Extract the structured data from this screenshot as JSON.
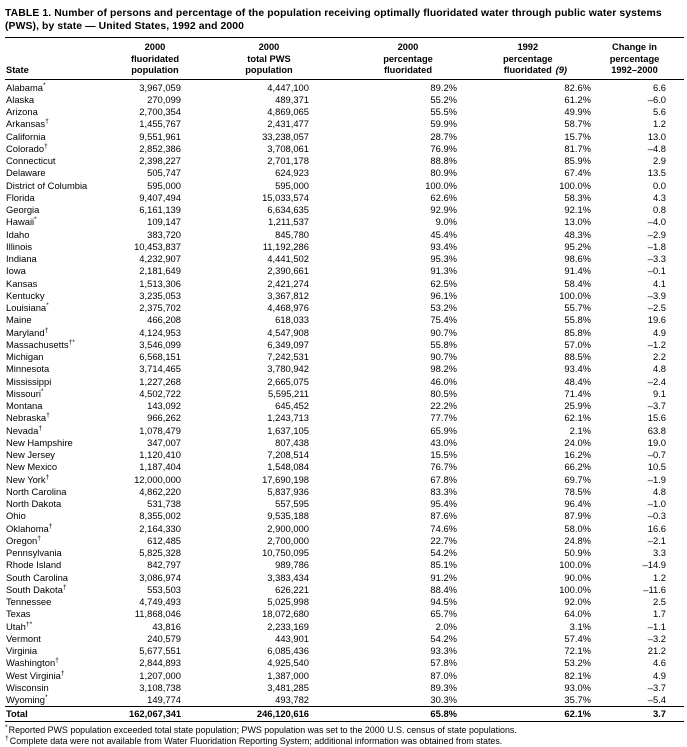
{
  "title": "TABLE 1. Number of persons and percentage of the population receiving optimally fluoridated water through public water systems (PWS), by state — United States, 1992 and 2000",
  "colors": {
    "background": "#ffffff",
    "text": "#000000"
  },
  "table": {
    "columns": [
      {
        "label": "State"
      },
      {
        "label": "2000\nfluoridated\npopulation"
      },
      {
        "label": "2000\ntotal PWS\npopulation"
      },
      {
        "label": "2000\npercentage\nfluoridated"
      },
      {
        "label": "1992\npercentage\nfluoridated",
        "ref": "(9)"
      },
      {
        "label": "Change in\npercentage\n1992–2000"
      }
    ],
    "rows": [
      {
        "state": "Alabama",
        "mark": "*",
        "values": [
          "3,967,059",
          "4,447,100",
          "89.2%",
          "82.6%",
          "6.6"
        ]
      },
      {
        "state": "Alaska",
        "mark": "",
        "values": [
          "270,099",
          "489,371",
          "55.2%",
          "61.2%",
          "–6.0"
        ]
      },
      {
        "state": "Arizona",
        "mark": "",
        "values": [
          "2,700,354",
          "4,869,065",
          "55.5%",
          "49.9%",
          "5.6"
        ]
      },
      {
        "state": "Arkansas",
        "mark": "†",
        "values": [
          "1,455,767",
          "2,431,477",
          "59.9%",
          "58.7%",
          "1.2"
        ]
      },
      {
        "state": "California",
        "mark": "",
        "values": [
          "9,551,961",
          "33,238,057",
          "28.7%",
          "15.7%",
          "13.0"
        ]
      },
      {
        "state": "Colorado",
        "mark": "†",
        "values": [
          "2,852,386",
          "3,708,061",
          "76.9%",
          "81.7%",
          "–4.8"
        ]
      },
      {
        "state": "Connecticut",
        "mark": "",
        "values": [
          "2,398,227",
          "2,701,178",
          "88.8%",
          "85.9%",
          "2.9"
        ]
      },
      {
        "state": "Delaware",
        "mark": "",
        "values": [
          "505,747",
          "624,923",
          "80.9%",
          "67.4%",
          "13.5"
        ]
      },
      {
        "state": "District of Columbia",
        "mark": "",
        "values": [
          "595,000",
          "595,000",
          "100.0%",
          "100.0%",
          "0.0"
        ]
      },
      {
        "state": "Florida",
        "mark": "",
        "values": [
          "9,407,494",
          "15,033,574",
          "62.6%",
          "58.3%",
          "4.3"
        ]
      },
      {
        "state": "Georgia",
        "mark": "",
        "values": [
          "6,161,139",
          "6,634,635",
          "92.9%",
          "92.1%",
          "0.8"
        ]
      },
      {
        "state": "Hawaii",
        "mark": "*",
        "values": [
          "109,147",
          "1,211,537",
          "9.0%",
          "13.0%",
          "–4.0"
        ]
      },
      {
        "state": "Idaho",
        "mark": "",
        "values": [
          "383,720",
          "845,780",
          "45.4%",
          "48.3%",
          "–2.9"
        ]
      },
      {
        "state": "Illinois",
        "mark": "",
        "values": [
          "10,453,837",
          "11,192,286",
          "93.4%",
          "95.2%",
          "–1.8"
        ]
      },
      {
        "state": "Indiana",
        "mark": "",
        "values": [
          "4,232,907",
          "4,441,502",
          "95.3%",
          "98.6%",
          "–3.3"
        ]
      },
      {
        "state": "Iowa",
        "mark": "",
        "values": [
          "2,181,649",
          "2,390,661",
          "91.3%",
          "91.4%",
          "–0.1"
        ]
      },
      {
        "state": "Kansas",
        "mark": "",
        "values": [
          "1,513,306",
          "2,421,274",
          "62.5%",
          "58.4%",
          "4.1"
        ]
      },
      {
        "state": "Kentucky",
        "mark": "",
        "values": [
          "3,235,053",
          "3,367,812",
          "96.1%",
          "100.0%",
          "–3.9"
        ]
      },
      {
        "state": "Louisiana",
        "mark": "*",
        "values": [
          "2,375,702",
          "4,468,976",
          "53.2%",
          "55.7%",
          "–2.5"
        ]
      },
      {
        "state": "Maine",
        "mark": "",
        "values": [
          "466,208",
          "618,033",
          "75.4%",
          "55.8%",
          "19.6"
        ]
      },
      {
        "state": "Maryland",
        "mark": "†",
        "values": [
          "4,124,953",
          "4,547,908",
          "90.7%",
          "85.8%",
          "4.9"
        ]
      },
      {
        "state": "Massachusetts",
        "mark": "†*",
        "values": [
          "3,546,099",
          "6,349,097",
          "55.8%",
          "57.0%",
          "–1.2"
        ]
      },
      {
        "state": "Michigan",
        "mark": "",
        "values": [
          "6,568,151",
          "7,242,531",
          "90.7%",
          "88.5%",
          "2.2"
        ]
      },
      {
        "state": "Minnesota",
        "mark": "",
        "values": [
          "3,714,465",
          "3,780,942",
          "98.2%",
          "93.4%",
          "4.8"
        ]
      },
      {
        "state": "Mississippi",
        "mark": "",
        "values": [
          "1,227,268",
          "2,665,075",
          "46.0%",
          "48.4%",
          "–2.4"
        ]
      },
      {
        "state": "Missouri",
        "mark": "*",
        "values": [
          "4,502,722",
          "5,595,211",
          "80.5%",
          "71.4%",
          "9.1"
        ]
      },
      {
        "state": "Montana",
        "mark": "",
        "values": [
          "143,092",
          "645,452",
          "22.2%",
          "25.9%",
          "–3.7"
        ]
      },
      {
        "state": "Nebraska",
        "mark": "†",
        "values": [
          "966,262",
          "1,243,713",
          "77.7%",
          "62.1%",
          "15.6"
        ]
      },
      {
        "state": "Nevada",
        "mark": "†",
        "values": [
          "1,078,479",
          "1,637,105",
          "65.9%",
          "2.1%",
          "63.8"
        ]
      },
      {
        "state": "New Hampshire",
        "mark": "",
        "values": [
          "347,007",
          "807,438",
          "43.0%",
          "24.0%",
          "19.0"
        ]
      },
      {
        "state": "New Jersey",
        "mark": "",
        "values": [
          "1,120,410",
          "7,208,514",
          "15.5%",
          "16.2%",
          "–0.7"
        ]
      },
      {
        "state": "New Mexico",
        "mark": "",
        "values": [
          "1,187,404",
          "1,548,084",
          "76.7%",
          "66.2%",
          "10.5"
        ]
      },
      {
        "state": "New York",
        "mark": "†",
        "values": [
          "12,000,000",
          "17,690,198",
          "67.8%",
          "69.7%",
          "–1.9"
        ]
      },
      {
        "state": "North Carolina",
        "mark": "",
        "values": [
          "4,862,220",
          "5,837,936",
          "83.3%",
          "78.5%",
          "4.8"
        ]
      },
      {
        "state": "North Dakota",
        "mark": "",
        "values": [
          "531,738",
          "557,595",
          "95.4%",
          "96.4%",
          "–1.0"
        ]
      },
      {
        "state": "Ohio",
        "mark": "",
        "values": [
          "8,355,002",
          "9,535,188",
          "87.6%",
          "87.9%",
          "–0.3"
        ]
      },
      {
        "state": "Oklahoma",
        "mark": "†",
        "values": [
          "2,164,330",
          "2,900,000",
          "74.6%",
          "58.0%",
          "16.6"
        ]
      },
      {
        "state": "Oregon",
        "mark": "†",
        "values": [
          "612,485",
          "2,700,000",
          "22.7%",
          "24.8%",
          "–2.1"
        ]
      },
      {
        "state": "Pennsylvania",
        "mark": "",
        "values": [
          "5,825,328",
          "10,750,095",
          "54.2%",
          "50.9%",
          "3.3"
        ]
      },
      {
        "state": "Rhode Island",
        "mark": "",
        "values": [
          "842,797",
          "989,786",
          "85.1%",
          "100.0%",
          "–14.9"
        ]
      },
      {
        "state": "South Carolina",
        "mark": "",
        "values": [
          "3,086,974",
          "3,383,434",
          "91.2%",
          "90.0%",
          "1.2"
        ]
      },
      {
        "state": "South Dakota",
        "mark": "†",
        "values": [
          "553,503",
          "626,221",
          "88.4%",
          "100.0%",
          "–11.6"
        ]
      },
      {
        "state": "Tennessee",
        "mark": "",
        "values": [
          "4,749,493",
          "5,025,998",
          "94.5%",
          "92.0%",
          "2.5"
        ]
      },
      {
        "state": "Texas",
        "mark": "",
        "values": [
          "11,868,046",
          "18,072,680",
          "65.7%",
          "64.0%",
          "1.7"
        ]
      },
      {
        "state": "Utah",
        "mark": "†*",
        "values": [
          "43,816",
          "2,233,169",
          "2.0%",
          "3.1%",
          "–1.1"
        ]
      },
      {
        "state": "Vermont",
        "mark": "",
        "values": [
          "240,579",
          "443,901",
          "54.2%",
          "57.4%",
          "–3.2"
        ]
      },
      {
        "state": "Virginia",
        "mark": "",
        "values": [
          "5,677,551",
          "6,085,436",
          "93.3%",
          "72.1%",
          "21.2"
        ]
      },
      {
        "state": "Washington",
        "mark": "†",
        "values": [
          "2,844,893",
          "4,925,540",
          "57.8%",
          "53.2%",
          "4.6"
        ]
      },
      {
        "state": "West Virginia",
        "mark": "†",
        "values": [
          "1,207,000",
          "1,387,000",
          "87.0%",
          "82.1%",
          "4.9"
        ]
      },
      {
        "state": "Wisconsin",
        "mark": "",
        "values": [
          "3,108,738",
          "3,481,285",
          "89.3%",
          "93.0%",
          "–3.7"
        ]
      },
      {
        "state": "Wyoming",
        "mark": "*",
        "values": [
          "149,774",
          "493,782",
          "30.3%",
          "35.7%",
          "–5.4"
        ]
      }
    ],
    "total": {
      "label": "Total",
      "values": [
        "162,067,341",
        "246,120,616",
        "65.8%",
        "62.1%",
        "3.7"
      ]
    }
  },
  "footnotes": [
    {
      "mark": "*",
      "text": "Reported PWS population exceeded total state population; PWS population was set to the 2000 U.S. census of state populations."
    },
    {
      "mark": "†",
      "text": "Complete data were not available from Water Fluoridation Reporting System; additional information was obtained from states."
    }
  ]
}
